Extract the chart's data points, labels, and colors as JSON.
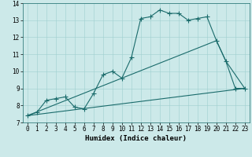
{
  "title": "",
  "xlabel": "Humidex (Indice chaleur)",
  "bg_color": "#cce9e9",
  "line_color": "#1a6b6b",
  "grid_color": "#9fcfcf",
  "xlim": [
    -0.5,
    23.5
  ],
  "ylim": [
    7,
    14
  ],
  "xticks": [
    0,
    1,
    2,
    3,
    4,
    5,
    6,
    7,
    8,
    9,
    10,
    11,
    12,
    13,
    14,
    15,
    16,
    17,
    18,
    19,
    20,
    21,
    22,
    23
  ],
  "yticks": [
    7,
    8,
    9,
    10,
    11,
    12,
    13,
    14
  ],
  "curve1_x": [
    0,
    1,
    2,
    3,
    4,
    5,
    6,
    7,
    8,
    9,
    10,
    11,
    12,
    13,
    14,
    15,
    16,
    17,
    18,
    19,
    20,
    21,
    22,
    23
  ],
  "curve1_y": [
    7.4,
    7.6,
    8.3,
    8.4,
    8.5,
    7.9,
    7.8,
    8.7,
    9.8,
    10.0,
    9.6,
    10.8,
    13.1,
    13.2,
    13.6,
    13.4,
    13.4,
    13.0,
    13.1,
    13.2,
    11.8,
    10.6,
    9.0,
    9.0
  ],
  "curve2_x": [
    0,
    23
  ],
  "curve2_y": [
    7.4,
    9.0
  ],
  "curve3_x": [
    0,
    20,
    21,
    23
  ],
  "curve3_y": [
    7.4,
    11.8,
    10.6,
    9.0
  ],
  "marker_size": 4,
  "line_width": 0.8,
  "xlabel_fontsize": 6.5,
  "tick_fontsize": 5.5
}
